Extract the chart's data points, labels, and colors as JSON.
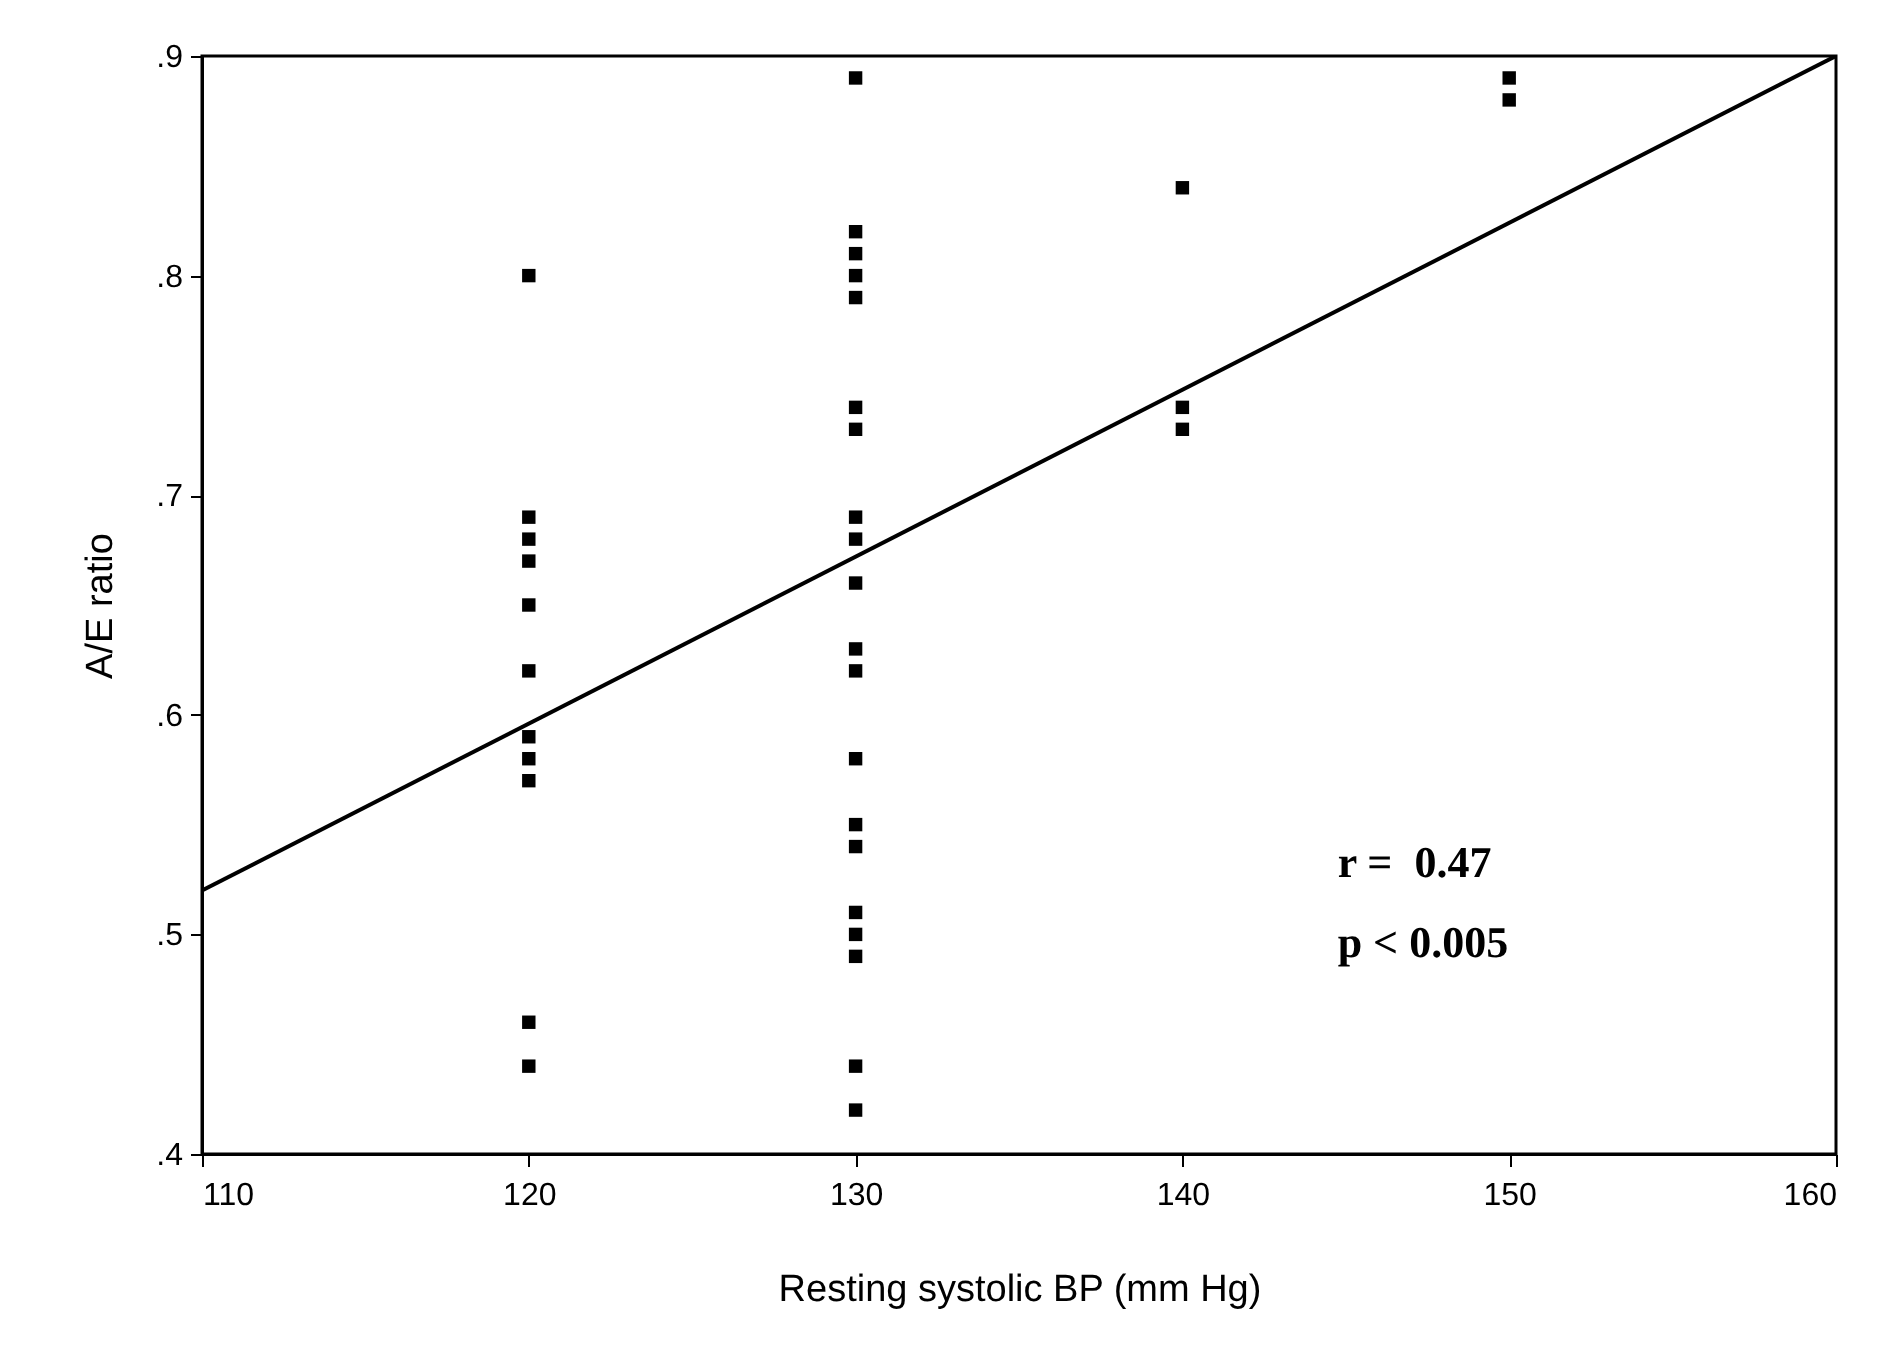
{
  "chart_data": {
    "type": "scatter",
    "xlabel": "Resting systolic BP (mm Hg)",
    "ylabel": "A/E ratio",
    "xlim": [
      110,
      160
    ],
    "xticks": [
      110,
      120,
      130,
      140,
      150,
      160
    ],
    "ylim": [
      0.4,
      0.9
    ],
    "yticks": [
      {
        "value": 0.4,
        "label": ".4"
      },
      {
        "value": 0.5,
        "label": ".5"
      },
      {
        "value": 0.6,
        "label": ".6"
      },
      {
        "value": 0.7,
        "label": ".7"
      },
      {
        "value": 0.8,
        "label": ".8"
      },
      {
        "value": 0.9,
        "label": ".9"
      }
    ],
    "grid": false,
    "series": [
      {
        "type": "scatter",
        "marker": "square",
        "color": "#000000",
        "x": [
          120,
          120,
          120,
          120,
          120,
          120,
          120,
          120,
          120,
          120,
          120,
          130,
          130,
          130,
          130,
          130,
          130,
          130,
          130,
          130,
          130,
          130,
          130,
          130,
          130,
          130,
          130,
          130,
          130,
          130,
          130,
          140,
          140,
          140,
          150,
          150
        ],
        "values": [
          0.8,
          0.69,
          0.68,
          0.67,
          0.65,
          0.62,
          0.59,
          0.58,
          0.57,
          0.46,
          0.44,
          0.89,
          0.82,
          0.81,
          0.8,
          0.79,
          0.74,
          0.73,
          0.69,
          0.68,
          0.66,
          0.63,
          0.62,
          0.58,
          0.55,
          0.54,
          0.51,
          0.5,
          0.49,
          0.44,
          0.42,
          0.84,
          0.74,
          0.73,
          0.89,
          0.88
        ]
      },
      {
        "type": "line",
        "marker": "none",
        "color": "#000000",
        "x": [
          110,
          160
        ],
        "values": [
          0.52,
          0.9
        ]
      }
    ],
    "annotations": [
      "r =  0.47",
      "p < 0.005"
    ]
  }
}
